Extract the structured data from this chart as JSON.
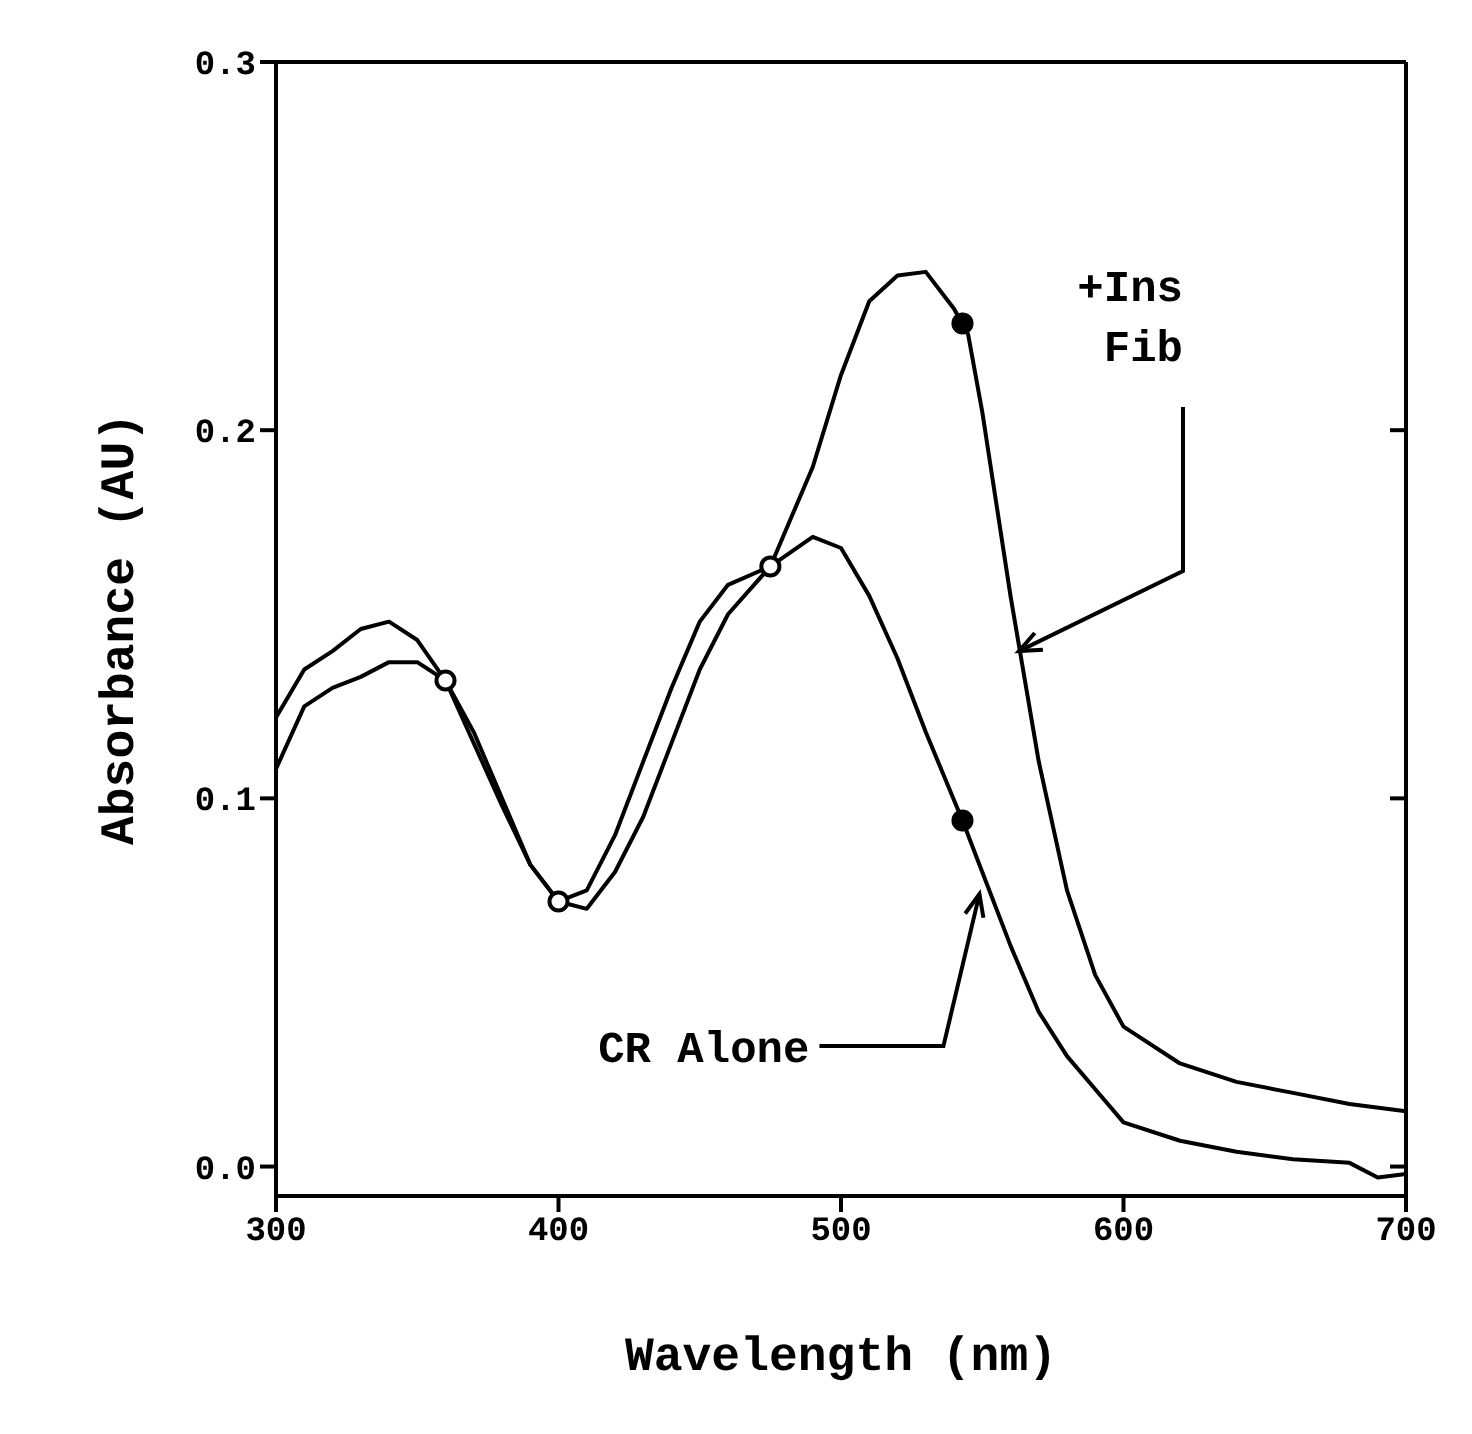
{
  "chart_data": {
    "type": "line",
    "xlabel": "Wavelength (nm)",
    "ylabel": "Absorbance (AU)",
    "xlim": [
      300,
      700
    ],
    "xticks": [
      300,
      400,
      500,
      600,
      700
    ],
    "ylim": [
      -0.008,
      0.3
    ],
    "yticks": [
      {
        "value": 0,
        "label": "0.0"
      },
      0.1,
      0.2,
      0.3
    ],
    "grid": false,
    "marker": "none",
    "line_style": "solid",
    "series": [
      {
        "color": "#000000",
        "x": [
          300,
          310,
          320,
          330,
          340,
          350,
          360,
          370,
          380,
          390,
          400,
          410,
          420,
          430,
          440,
          450,
          460,
          475,
          490,
          500,
          510,
          520,
          530,
          540,
          545,
          550,
          560,
          570,
          580,
          590,
          600,
          620,
          640,
          660,
          680,
          700
        ],
        "values": [
          0.108,
          0.125,
          0.13,
          0.133,
          0.137,
          0.137,
          0.132,
          0.118,
          0.1,
          0.082,
          0.072,
          0.07,
          0.08,
          0.095,
          0.115,
          0.135,
          0.15,
          0.163,
          0.19,
          0.215,
          0.235,
          0.242,
          0.243,
          0.233,
          0.226,
          0.205,
          0.155,
          0.11,
          0.075,
          0.052,
          0.038,
          0.028,
          0.023,
          0.02,
          0.017,
          0.015
        ]
      },
      {
        "color": "#000000",
        "x": [
          300,
          310,
          320,
          330,
          340,
          350,
          360,
          370,
          380,
          390,
          400,
          410,
          420,
          430,
          440,
          450,
          460,
          475,
          490,
          500,
          510,
          520,
          530,
          543,
          550,
          560,
          570,
          580,
          590,
          600,
          620,
          640,
          660,
          680,
          690,
          700
        ],
        "values": [
          0.122,
          0.135,
          0.14,
          0.146,
          0.148,
          0.143,
          0.132,
          0.115,
          0.098,
          0.082,
          0.072,
          0.075,
          0.09,
          0.11,
          0.13,
          0.148,
          0.158,
          0.163,
          0.171,
          0.168,
          0.155,
          0.138,
          0.118,
          0.094,
          0.08,
          0.06,
          0.042,
          0.03,
          0.021,
          0.012,
          0.007,
          0.004,
          0.002,
          0.001,
          -0.003,
          -0.002
        ]
      },
      {
        "type": "scatter",
        "color": "#ffffff",
        "marker": "circle",
        "x": [
          360,
          400,
          475
        ],
        "values": [
          0.132,
          0.072,
          0.163
        ]
      },
      {
        "type": "scatter",
        "color": "#000000",
        "marker": "circle",
        "x": [
          543,
          543
        ],
        "values": [
          0.229,
          0.094
        ]
      }
    ],
    "annotations": [
      {
        "text": "+Ins Fib",
        "x": 563,
        "y": 0.14
      },
      {
        "text": "CR Alone",
        "x": 549,
        "y": 0.074
      }
    ]
  }
}
